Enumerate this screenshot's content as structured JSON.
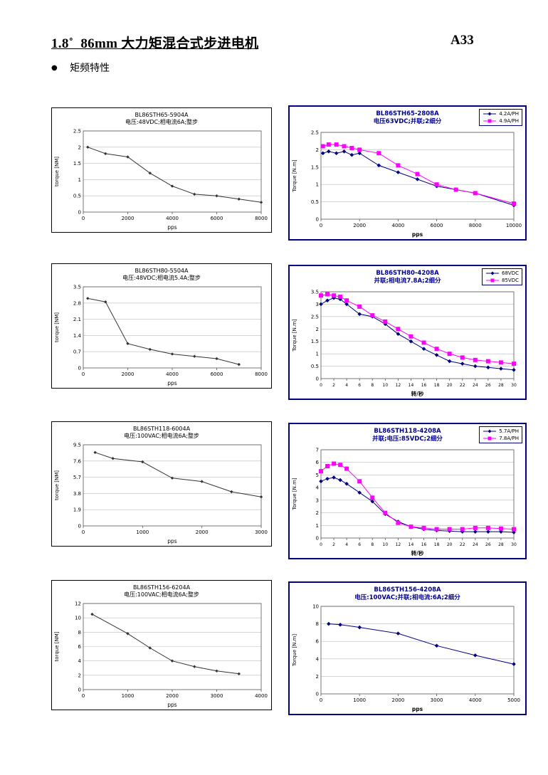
{
  "page": {
    "title": "1.8˚  86mm 大力矩混合式步进电机",
    "page_number": "A33",
    "section": "矩频特性"
  },
  "accent_colors": {
    "frame_navy": "#000080",
    "series_blue": "#000080",
    "series_pink": "#FF00FF"
  },
  "chart_data": [
    {
      "type": "line",
      "panel_style": "plain",
      "title": "BL86STH65-5904A",
      "subtitle": "电压:48VDC;相电流6A;整步",
      "xlabel": "pps",
      "ylabel": "torque  [NM]",
      "xlim": [
        0,
        8000
      ],
      "xticks": [
        0,
        2000,
        4000,
        6000,
        8000
      ],
      "ylim": [
        0,
        2.5
      ],
      "yticks": [
        0,
        0.5,
        1,
        1.5,
        2,
        2.5
      ],
      "legend": false,
      "series": [
        {
          "name": "torque",
          "color": "#333333",
          "marker": "diamond",
          "x": [
            200,
            1000,
            2000,
            3000,
            4000,
            5000,
            6000,
            7000,
            8000
          ],
          "y": [
            2.0,
            1.8,
            1.7,
            1.2,
            0.8,
            0.55,
            0.5,
            0.4,
            0.3
          ]
        }
      ]
    },
    {
      "type": "line",
      "panel_style": "navy",
      "title": "BL86STH65-2808A",
      "subtitle": "电压63VDC;并联;2细分",
      "xlabel": "pps",
      "ylabel": "Torque [N.m]",
      "xlim": [
        0,
        10000
      ],
      "xticks": [
        0,
        2000,
        4000,
        6000,
        8000,
        10000
      ],
      "ylim": [
        0,
        2.5
      ],
      "yticks": [
        0,
        0.5,
        1,
        1.5,
        2,
        2.5
      ],
      "legend": true,
      "series": [
        {
          "name": "4.2A/PH",
          "color": "#000080",
          "marker": "diamond",
          "x": [
            100,
            400,
            800,
            1200,
            1600,
            2000,
            3000,
            4000,
            5000,
            6000,
            7000,
            8000,
            10000
          ],
          "y": [
            1.9,
            1.95,
            1.9,
            1.95,
            1.85,
            1.9,
            1.55,
            1.35,
            1.15,
            0.95,
            0.85,
            0.75,
            0.4
          ]
        },
        {
          "name": "4.9A/PH",
          "color": "#FF00FF",
          "marker": "square",
          "x": [
            100,
            400,
            800,
            1200,
            1600,
            2000,
            3000,
            4000,
            5000,
            6000,
            7000,
            8000,
            10000
          ],
          "y": [
            2.1,
            2.15,
            2.15,
            2.1,
            2.05,
            2.0,
            1.9,
            1.55,
            1.3,
            1.0,
            0.85,
            0.75,
            0.45
          ]
        }
      ]
    },
    {
      "type": "line",
      "panel_style": "plain",
      "title": "BL86STH80-5504A",
      "subtitle": "电压:48VDC;相电流5.4A;整步",
      "xlabel": "pps",
      "ylabel": "torque  [NM]",
      "xlim": [
        0,
        8000
      ],
      "xticks": [
        0,
        2000,
        4000,
        6000,
        8000
      ],
      "ylim": [
        0,
        3.5
      ],
      "yticks": [
        0,
        0.7,
        1.4,
        2.1,
        2.8,
        3.5
      ],
      "legend": false,
      "series": [
        {
          "name": "torque",
          "color": "#333333",
          "marker": "diamond",
          "x": [
            200,
            1000,
            2000,
            3000,
            4000,
            5000,
            6000,
            7000
          ],
          "y": [
            3.0,
            2.85,
            1.05,
            0.8,
            0.6,
            0.5,
            0.4,
            0.15
          ]
        }
      ]
    },
    {
      "type": "line",
      "panel_style": "navy",
      "title": "BL86STH80-4208A",
      "subtitle": "并联;相电流7.8A;2细分",
      "xlabel": "转/秒",
      "ylabel": "Torque [N.m]",
      "xlim": [
        0,
        30
      ],
      "xticks": [
        0,
        2,
        4,
        6,
        8,
        10,
        12,
        14,
        16,
        18,
        20,
        22,
        24,
        26,
        28,
        30
      ],
      "ylim": [
        0,
        3.5
      ],
      "yticks": [
        0,
        0.5,
        1,
        1.5,
        2,
        2.5,
        3,
        3.5
      ],
      "legend": true,
      "series": [
        {
          "name": "68VDC",
          "color": "#000080",
          "marker": "diamond",
          "x": [
            0,
            1,
            2,
            3,
            4,
            6,
            8,
            10,
            12,
            14,
            16,
            18,
            20,
            22,
            24,
            26,
            28,
            30
          ],
          "y": [
            3.0,
            3.15,
            3.25,
            3.2,
            3.0,
            2.6,
            2.5,
            2.2,
            1.8,
            1.5,
            1.2,
            0.95,
            0.7,
            0.6,
            0.5,
            0.45,
            0.4,
            0.35
          ]
        },
        {
          "name": "85VDC",
          "color": "#FF00FF",
          "marker": "square",
          "x": [
            0,
            1,
            2,
            3,
            4,
            6,
            8,
            10,
            12,
            14,
            16,
            18,
            20,
            22,
            24,
            26,
            28,
            30
          ],
          "y": [
            3.35,
            3.4,
            3.35,
            3.3,
            3.15,
            2.9,
            2.55,
            2.3,
            2.0,
            1.7,
            1.45,
            1.2,
            1.0,
            0.85,
            0.75,
            0.7,
            0.65,
            0.6
          ]
        }
      ]
    },
    {
      "type": "line",
      "panel_style": "plain",
      "title": "BL86STH118-6004A",
      "subtitle": "电压:100VAC;相电流6A;整步",
      "xlabel": "pps",
      "ylabel": "torque  [NM]",
      "xlim": [
        0,
        3000
      ],
      "xticks": [
        0,
        1000,
        2000,
        3000
      ],
      "ylim": [
        0,
        9.5
      ],
      "yticks": [
        0,
        1.9,
        3.8,
        5.7,
        7.6,
        9.5
      ],
      "legend": false,
      "series": [
        {
          "name": "torque",
          "color": "#333333",
          "marker": "diamond",
          "x": [
            200,
            500,
            1000,
            1500,
            2000,
            2500,
            3000
          ],
          "y": [
            8.6,
            7.9,
            7.5,
            5.6,
            5.2,
            4.0,
            3.4
          ]
        }
      ]
    },
    {
      "type": "line",
      "panel_style": "navy",
      "title": "BL86STH118-4208A",
      "subtitle": "并联;电压:85VDC;2细分",
      "xlabel": "转/秒",
      "ylabel": "Torque [N.m]",
      "xlim": [
        0,
        30
      ],
      "xticks": [
        0,
        2,
        4,
        6,
        8,
        10,
        12,
        14,
        16,
        18,
        20,
        22,
        24,
        26,
        28,
        30
      ],
      "ylim": [
        0,
        7
      ],
      "yticks": [
        0,
        1,
        2,
        3,
        4,
        5,
        6,
        7
      ],
      "legend": true,
      "series": [
        {
          "name": "5.7A/PH",
          "color": "#000080",
          "marker": "diamond",
          "x": [
            0,
            1,
            2,
            3,
            4,
            6,
            8,
            10,
            12,
            14,
            16,
            18,
            20,
            22,
            24,
            26,
            28,
            30
          ],
          "y": [
            4.5,
            4.7,
            4.8,
            4.6,
            4.3,
            3.6,
            2.9,
            1.9,
            1.3,
            0.9,
            0.7,
            0.6,
            0.55,
            0.5,
            0.5,
            0.5,
            0.5,
            0.45
          ]
        },
        {
          "name": "7.8A/PH",
          "color": "#FF00FF",
          "marker": "square",
          "x": [
            0,
            1,
            2,
            3,
            4,
            6,
            8,
            10,
            12,
            14,
            16,
            18,
            20,
            22,
            24,
            26,
            28,
            30
          ],
          "y": [
            5.3,
            5.7,
            5.9,
            5.8,
            5.5,
            4.5,
            3.2,
            2.0,
            1.2,
            0.9,
            0.8,
            0.7,
            0.7,
            0.7,
            0.8,
            0.8,
            0.75,
            0.7
          ]
        }
      ]
    },
    {
      "type": "line",
      "panel_style": "plain",
      "title": "BL86STH156-6204A",
      "subtitle": "电压:100VAC;相电流6A;整步",
      "xlabel": "pps",
      "ylabel": "torque  [NM]",
      "xlim": [
        0,
        4000
      ],
      "xticks": [
        0,
        1000,
        2000,
        3000,
        4000
      ],
      "ylim": [
        0,
        12
      ],
      "yticks": [
        0,
        2,
        4,
        6,
        8,
        10,
        12
      ],
      "legend": false,
      "series": [
        {
          "name": "torque",
          "color": "#333333",
          "marker": "diamond",
          "x": [
            200,
            1000,
            1500,
            2000,
            2500,
            3000,
            3500
          ],
          "y": [
            10.5,
            7.8,
            5.8,
            4.0,
            3.2,
            2.6,
            2.2
          ]
        }
      ]
    },
    {
      "type": "line",
      "panel_style": "navy",
      "title": "BL86STH156-4208A",
      "subtitle": "电压:100VAC;并联;相电流:6A;2细分",
      "xlabel": "pps",
      "ylabel": "Torque [N.m]",
      "xlim": [
        0,
        5000
      ],
      "xticks": [
        0,
        1000,
        2000,
        3000,
        4000,
        5000
      ],
      "ylim": [
        0,
        10
      ],
      "yticks": [
        0,
        2,
        4,
        6,
        8,
        10
      ],
      "legend": false,
      "series": [
        {
          "name": "torque",
          "color": "#000080",
          "marker": "diamond",
          "x": [
            200,
            500,
            1000,
            2000,
            3000,
            4000,
            5000
          ],
          "y": [
            8.0,
            7.9,
            7.6,
            6.9,
            5.5,
            4.4,
            3.4
          ]
        }
      ]
    }
  ]
}
